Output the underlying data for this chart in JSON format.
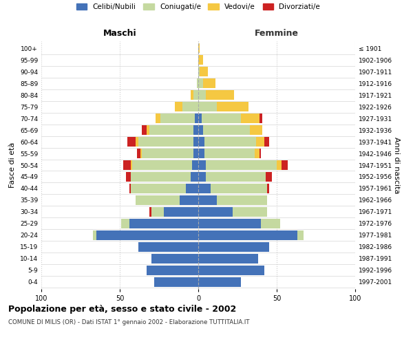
{
  "age_groups": [
    "0-4",
    "5-9",
    "10-14",
    "15-19",
    "20-24",
    "25-29",
    "30-34",
    "35-39",
    "40-44",
    "45-49",
    "50-54",
    "55-59",
    "60-64",
    "65-69",
    "70-74",
    "75-79",
    "80-84",
    "85-89",
    "90-94",
    "95-99",
    "100+"
  ],
  "birth_years": [
    "1997-2001",
    "1992-1996",
    "1987-1991",
    "1982-1986",
    "1977-1981",
    "1972-1976",
    "1967-1971",
    "1962-1966",
    "1957-1961",
    "1952-1956",
    "1947-1951",
    "1942-1946",
    "1937-1941",
    "1932-1936",
    "1927-1931",
    "1922-1926",
    "1917-1921",
    "1912-1916",
    "1907-1911",
    "1902-1906",
    "≤ 1901"
  ],
  "colors": {
    "celibi": "#4472b8",
    "coniugati": "#c5d9a0",
    "vedovi": "#f5c842",
    "divorziati": "#cc2222"
  },
  "maschi": {
    "celibi": [
      28,
      33,
      30,
      38,
      65,
      44,
      22,
      12,
      8,
      5,
      4,
      3,
      3,
      3,
      2,
      0,
      0,
      0,
      0,
      0,
      0
    ],
    "coniugati": [
      0,
      0,
      0,
      0,
      2,
      5,
      8,
      28,
      35,
      38,
      38,
      33,
      35,
      28,
      22,
      10,
      3,
      1,
      0,
      0,
      0
    ],
    "vedovi": [
      0,
      0,
      0,
      0,
      0,
      0,
      0,
      0,
      0,
      0,
      1,
      1,
      2,
      2,
      3,
      5,
      2,
      0,
      0,
      0,
      0
    ],
    "divorziati": [
      0,
      0,
      0,
      0,
      0,
      0,
      1,
      0,
      1,
      3,
      5,
      2,
      5,
      3,
      0,
      0,
      0,
      0,
      0,
      0,
      0
    ]
  },
  "femmine": {
    "celibi": [
      27,
      42,
      38,
      45,
      63,
      40,
      22,
      12,
      8,
      5,
      5,
      4,
      4,
      3,
      2,
      0,
      0,
      0,
      0,
      0,
      0
    ],
    "coniugati": [
      0,
      0,
      0,
      0,
      4,
      12,
      22,
      32,
      36,
      38,
      45,
      32,
      33,
      30,
      25,
      12,
      5,
      3,
      1,
      0,
      0
    ],
    "vedovi": [
      0,
      0,
      0,
      0,
      0,
      0,
      0,
      0,
      0,
      0,
      3,
      3,
      5,
      8,
      12,
      20,
      18,
      8,
      5,
      3,
      1
    ],
    "divorziati": [
      0,
      0,
      0,
      0,
      0,
      0,
      0,
      0,
      1,
      4,
      4,
      1,
      3,
      0,
      2,
      0,
      0,
      0,
      0,
      0,
      0
    ]
  },
  "title": "Popolazione per età, sesso e stato civile - 2002",
  "subtitle": "COMUNE DI MILIS (OR) - Dati ISTAT 1° gennaio 2002 - Elaborazione TUTTITALIA.IT",
  "xlabel_left": "Maschi",
  "xlabel_right": "Femmine",
  "ylabel_left": "Fasce di età",
  "ylabel_right": "Anni di nascita",
  "xlim": 100,
  "bg_color": "#ffffff",
  "grid_color": "#cccccc",
  "legend_labels": [
    "Celibi/Nubili",
    "Coniugati/e",
    "Vedovi/e",
    "Divorziati/e"
  ]
}
